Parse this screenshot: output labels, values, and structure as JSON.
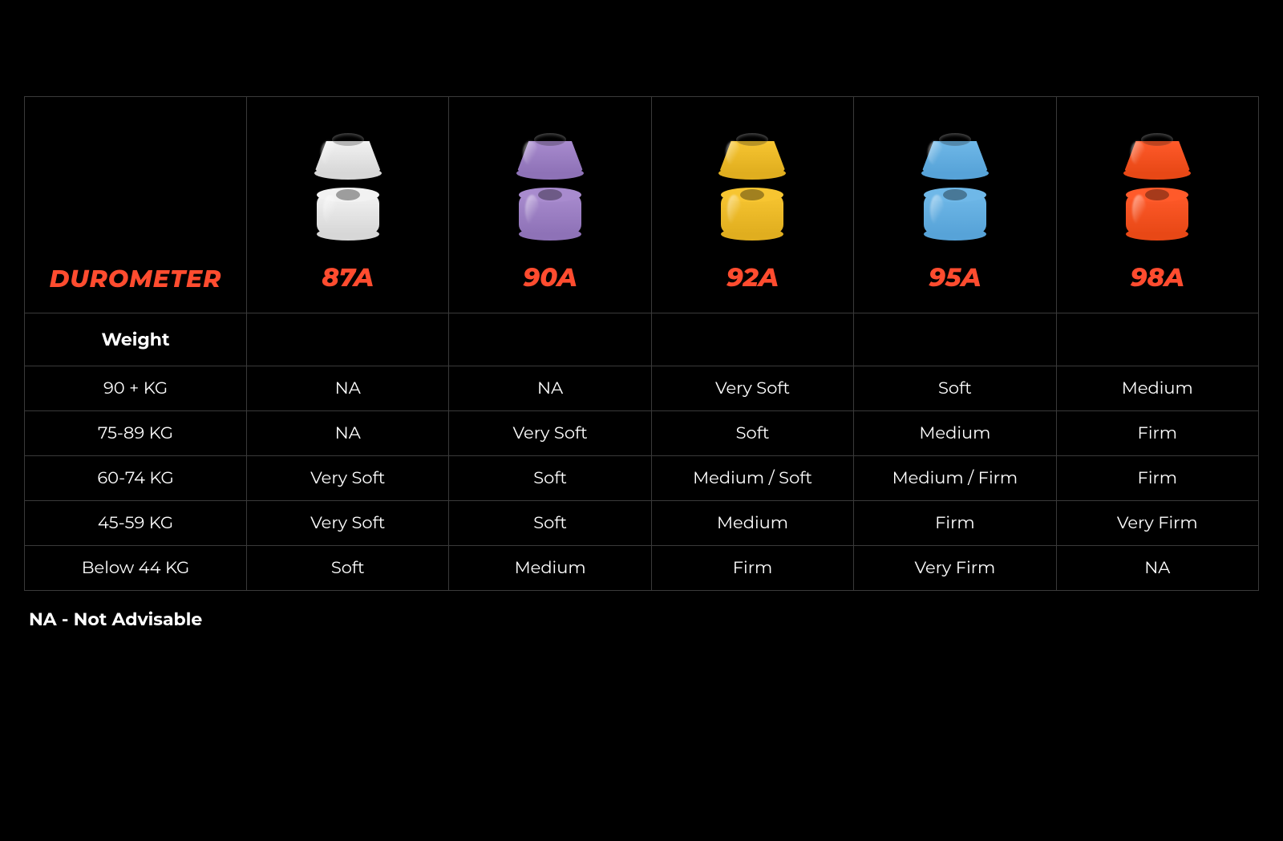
{
  "title": "DUROMETER",
  "title_color": "#ff4c2f",
  "weight_header": "Weight",
  "footnote": "NA - Not Advisable",
  "border_color": "#3a3a3a",
  "background_color": "#000000",
  "text_color": "#ffffff",
  "durometers": [
    {
      "label": "87A",
      "color": "#f2f2f2",
      "shade": "#d7d7d7"
    },
    {
      "label": "90A",
      "color": "#a88bce",
      "shade": "#8e72b7"
    },
    {
      "label": "92A",
      "color": "#f7c531",
      "shade": "#e0ae1f"
    },
    {
      "label": "95A",
      "color": "#6fb8e8",
      "shade": "#57a3d8"
    },
    {
      "label": "98A",
      "color": "#ff5a2a",
      "shade": "#e84816"
    }
  ],
  "rows": [
    {
      "label": "90 + KG",
      "cells": [
        "NA",
        "NA",
        "Very Soft",
        "Soft",
        "Medium"
      ]
    },
    {
      "label": "75-89 KG",
      "cells": [
        "NA",
        "Very Soft",
        "Soft",
        "Medium",
        "Firm"
      ]
    },
    {
      "label": "60-74 KG",
      "cells": [
        "Very Soft",
        "Soft",
        "Medium / Soft",
        "Medium / Firm",
        "Firm"
      ]
    },
    {
      "label": "45-59 KG",
      "cells": [
        "Very Soft",
        "Soft",
        "Medium",
        "Firm",
        "Very Firm"
      ]
    },
    {
      "label": "Below 44 KG",
      "cells": [
        "Soft",
        "Medium",
        "Firm",
        "Very Firm",
        "NA"
      ]
    }
  ]
}
